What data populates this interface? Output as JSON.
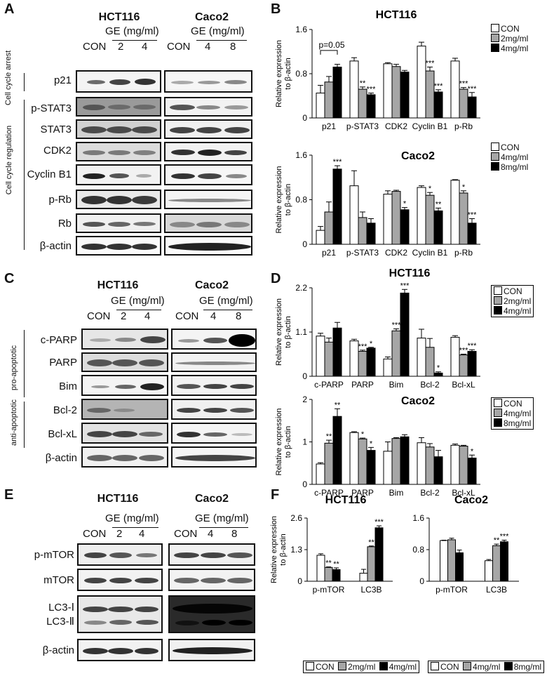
{
  "panels": {
    "A": {
      "letter": "A",
      "cells": [
        "HCT116",
        "Caco2"
      ],
      "treatment": "GE (mg/ml)",
      "lanes_hct": [
        "CON",
        "2",
        "4"
      ],
      "lanes_caco": [
        "CON",
        "4",
        "8"
      ],
      "group_labels": [
        "Cell cycle arrest",
        "Cell cycle regulation"
      ],
      "proteins": [
        "p21",
        "p-STAT3",
        "STAT3",
        "CDK2",
        "Cyclin B1",
        "p-Rb",
        "Rb",
        "β-actin"
      ]
    },
    "C": {
      "letter": "C",
      "cells": [
        "HCT116",
        "Caco2"
      ],
      "treatment": "GE (mg/ml)",
      "lanes_hct": [
        "CON",
        "2",
        "4"
      ],
      "lanes_caco": [
        "CON",
        "4",
        "8"
      ],
      "group_labels": [
        "pro-apoptotic",
        "anti-apoptotic"
      ],
      "proteins": [
        "c-PARP",
        "PARP",
        "Bim",
        "Bcl-2",
        "Bcl-xL",
        "β-actin"
      ]
    },
    "E": {
      "letter": "E",
      "cells": [
        "HCT116",
        "Caco2"
      ],
      "treatment": "GE (mg/ml)",
      "lanes_hct": [
        "CON",
        "2",
        "4"
      ],
      "lanes_caco": [
        "CON",
        "4",
        "8"
      ],
      "proteins": [
        "p-mTOR",
        "mTOR",
        "LC3-Ⅰ",
        "LC3-Ⅱ",
        "β-actin"
      ]
    },
    "B": {
      "letter": "B"
    },
    "D": {
      "letter": "D"
    },
    "F": {
      "letter": "F"
    }
  },
  "legends": {
    "hct": [
      "CON",
      "2mg/ml",
      "4mg/ml"
    ],
    "caco": [
      "CON",
      "4mg/ml",
      "8mg/ml"
    ]
  },
  "ylabel": "Relative expression to β-actin",
  "colors": {
    "con": "#ffffff",
    "mid": "#a6a6a6",
    "high": "#000000"
  },
  "chart_data": [
    {
      "id": "B-HCT116",
      "type": "bar",
      "title": "HCT116",
      "ylabel": "Relative expression to β-actin",
      "ylim": [
        0,
        1.6
      ],
      "yticks": [
        "0",
        "0.8",
        "1.6"
      ],
      "categories": [
        "p21",
        "p-STAT3",
        "CDK2",
        "Cyclin B1",
        "p-Rb"
      ],
      "series": [
        {
          "name": "CON",
          "values": [
            0.45,
            1.03,
            0.98,
            1.3,
            1.03
          ]
        },
        {
          "name": "2mg/ml",
          "values": [
            0.65,
            0.52,
            0.93,
            0.85,
            0.52
          ]
        },
        {
          "name": "4mg/ml",
          "values": [
            0.92,
            0.42,
            0.83,
            0.47,
            0.38
          ]
        }
      ],
      "errors": [
        [
          0.14,
          0.06,
          0.02,
          0.07,
          0.05
        ],
        [
          0.1,
          0.04,
          0.04,
          0.07,
          0.03
        ],
        [
          0.05,
          0.03,
          0.03,
          0.04,
          0.08
        ]
      ],
      "significance": [
        [
          "",
          "",
          "",
          "",
          ""
        ],
        [
          "",
          "**",
          "",
          "***",
          "***"
        ],
        [
          "",
          "***",
          "",
          "***",
          "***"
        ]
      ],
      "annotation": "p=0.05",
      "legend": "top-right"
    },
    {
      "id": "B-Caco2",
      "type": "bar",
      "title": "Caco2",
      "ylabel": "Relative expression to β-actin",
      "ylim": [
        0,
        1.6
      ],
      "yticks": [
        "0",
        "0.8",
        "1.6"
      ],
      "categories": [
        "p21",
        "p-STAT3",
        "CDK2",
        "Cyclin B1",
        "p-Rb"
      ],
      "series": [
        {
          "name": "CON",
          "values": [
            0.25,
            1.05,
            0.9,
            1.02,
            1.15
          ]
        },
        {
          "name": "4mg/ml",
          "values": [
            0.58,
            0.48,
            0.95,
            0.88,
            0.92
          ]
        },
        {
          "name": "8mg/ml",
          "values": [
            1.35,
            0.38,
            0.62,
            0.6,
            0.38
          ]
        }
      ],
      "errors": [
        [
          0.07,
          0.27,
          0.06,
          0.03,
          0.01
        ],
        [
          0.18,
          0.1,
          0.02,
          0.05,
          0.04
        ],
        [
          0.06,
          0.08,
          0.04,
          0.05,
          0.08
        ]
      ],
      "significance": [
        [
          "",
          "",
          "",
          "",
          ""
        ],
        [
          "",
          "",
          "",
          "*",
          "*"
        ],
        [
          "***",
          "",
          "*",
          "**",
          "***"
        ]
      ],
      "legend": "top-right"
    },
    {
      "id": "D-HCT116",
      "type": "bar",
      "title": "HCT116",
      "ylabel": "Relative expression to β-actin",
      "ylim": [
        0,
        2.2
      ],
      "yticks": [
        "0",
        "1.1",
        "2.2"
      ],
      "categories": [
        "c-PARP",
        "PARP",
        "Bim",
        "Bcl-2",
        "Bcl-xL"
      ],
      "series": [
        {
          "name": "CON",
          "values": [
            1.0,
            0.88,
            0.43,
            0.95,
            0.97
          ]
        },
        {
          "name": "2mg/ml",
          "values": [
            0.85,
            0.62,
            1.13,
            0.72,
            0.53
          ]
        },
        {
          "name": "4mg/ml",
          "values": [
            1.2,
            0.7,
            2.07,
            0.08,
            0.62
          ]
        }
      ],
      "errors": [
        [
          0.07,
          0.04,
          0.05,
          0.22,
          0.04
        ],
        [
          0.1,
          0.03,
          0.05,
          0.22,
          0.02
        ],
        [
          0.14,
          0.02,
          0.09,
          0.03,
          0.04
        ]
      ],
      "significance": [
        [
          "",
          "",
          "",
          "",
          ""
        ],
        [
          "",
          "***",
          "***",
          "",
          "***"
        ],
        [
          "",
          "*",
          "***",
          "*",
          "***"
        ]
      ],
      "legend": "top-right"
    },
    {
      "id": "D-Caco2",
      "type": "bar",
      "title": "Caco2",
      "ylabel": "Relative expression to β-actin",
      "ylim": [
        0,
        2
      ],
      "yticks": [
        "0",
        "1",
        "2"
      ],
      "categories": [
        "c-PARP",
        "PARP",
        "Bim",
        "Bcl-2",
        "Bcl-xL"
      ],
      "series": [
        {
          "name": "CON",
          "values": [
            0.48,
            1.22,
            0.78,
            0.98,
            0.92
          ]
        },
        {
          "name": "4mg/ml",
          "values": [
            0.97,
            1.07,
            1.08,
            0.88,
            0.9
          ]
        },
        {
          "name": "8mg/ml",
          "values": [
            1.6,
            0.8,
            1.12,
            0.65,
            0.62
          ]
        }
      ],
      "errors": [
        [
          0.03,
          0.02,
          0.22,
          0.12,
          0.03
        ],
        [
          0.07,
          0.02,
          0.02,
          0.08,
          0.02
        ],
        [
          0.18,
          0.07,
          0.05,
          0.15,
          0.07
        ]
      ],
      "significance": [
        [
          "",
          "",
          "",
          "",
          ""
        ],
        [
          "**",
          "*",
          "",
          "",
          ""
        ],
        [
          "**",
          "*",
          "",
          "",
          "*"
        ]
      ],
      "legend": "top-right"
    },
    {
      "id": "F-HCT116",
      "type": "bar",
      "title": "HCT116",
      "ylabel": "Relative expression to β-actin",
      "ylim": [
        0,
        2.6
      ],
      "yticks": [
        "0",
        "1.3",
        "2.6"
      ],
      "categories": [
        "p-mTOR",
        "LC3B"
      ],
      "series": [
        {
          "name": "CON",
          "values": [
            1.07,
            0.33
          ]
        },
        {
          "name": "2mg/ml",
          "values": [
            0.57,
            1.42
          ]
        },
        {
          "name": "4mg/ml",
          "values": [
            0.48,
            2.2
          ]
        }
      ],
      "errors": [
        [
          0.06,
          0.16
        ],
        [
          0.02,
          0.03
        ],
        [
          0.07,
          0.08
        ]
      ],
      "significance": [
        [
          "",
          ""
        ],
        [
          "**",
          "**"
        ],
        [
          "**",
          "***"
        ]
      ],
      "legend": "bottom"
    },
    {
      "id": "F-Caco2",
      "type": "bar",
      "title": "Caco2",
      "ylim": [
        0,
        1.6
      ],
      "yticks": [
        "0",
        "0.8",
        "1.6"
      ],
      "categories": [
        "p-mTOR",
        "LC3B"
      ],
      "series": [
        {
          "name": "CON",
          "values": [
            1.03,
            0.52
          ]
        },
        {
          "name": "4mg/ml",
          "values": [
            1.05,
            0.9
          ]
        },
        {
          "name": "8mg/ml",
          "values": [
            0.72,
            1.0
          ]
        }
      ],
      "errors": [
        [
          0.01,
          0.03
        ],
        [
          0.04,
          0.04
        ],
        [
          0.07,
          0.04
        ]
      ],
      "significance": [
        [
          "",
          ""
        ],
        [
          "",
          "**"
        ],
        [
          "",
          "***"
        ]
      ],
      "legend": "bottom"
    }
  ]
}
